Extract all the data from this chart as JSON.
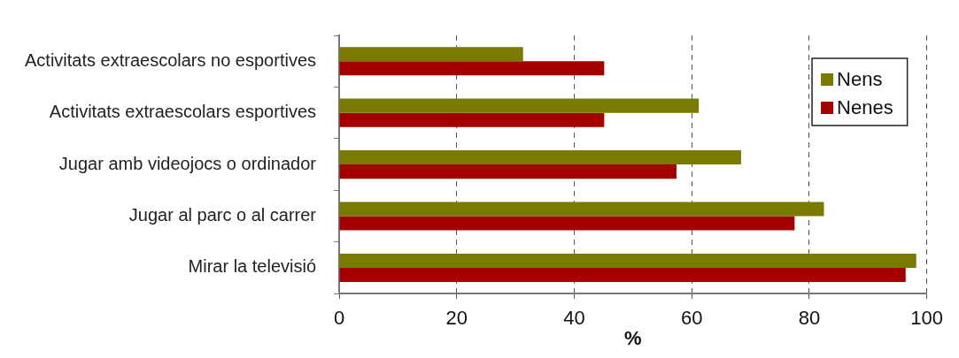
{
  "chart_data": {
    "type": "bar",
    "orientation": "horizontal",
    "xlabel": "%",
    "categories": [
      "Activitats extraescolars no esportives",
      "Activitats extraescolars esportives",
      "Jugar amb videojocs o ordinador",
      "Jugar al parc o al carrer",
      "Mirar la televisió"
    ],
    "series": [
      {
        "name": "Nens",
        "color": "#7a7a00",
        "values": [
          31.3,
          61.2,
          68.4,
          82.5,
          98.2
        ]
      },
      {
        "name": "Nenes",
        "color": "#a50000",
        "values": [
          45.1,
          45.1,
          57.4,
          77.5,
          96.4
        ]
      }
    ],
    "xlim": [
      0,
      100
    ],
    "xticks": [
      0,
      20,
      40,
      60,
      80,
      100
    ],
    "grid": "x",
    "legend": "top right"
  }
}
